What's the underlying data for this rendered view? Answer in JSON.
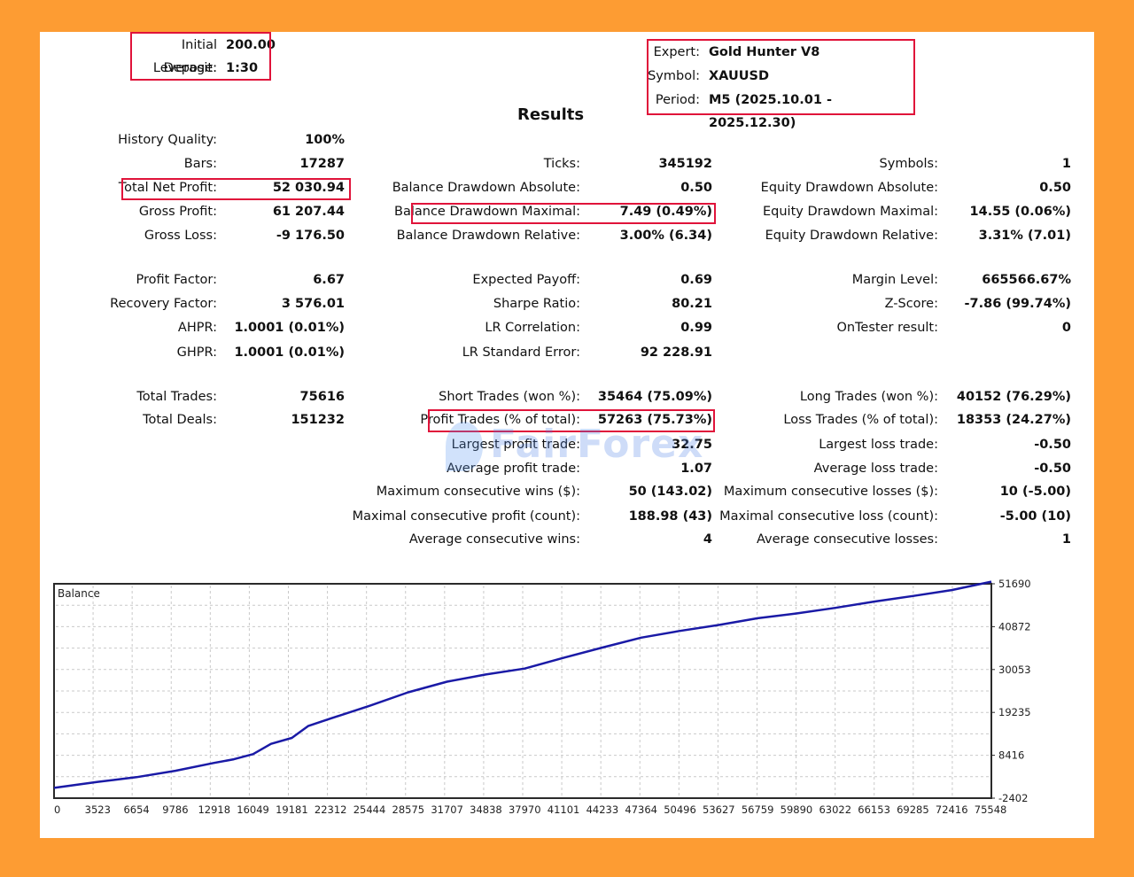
{
  "header_left": {
    "initial_deposit_label": "Initial Deposit:",
    "initial_deposit_value": "200.00",
    "leverage_label": "Leverage:",
    "leverage_value": "1:30"
  },
  "header_right": {
    "expert_label": "Expert:",
    "expert_value": "Gold Hunter V8",
    "symbol_label": "Symbol:",
    "symbol_value": "XAUUSD",
    "period_label": "Period:",
    "period_value": "M5 (2025.10.01 - 2025.12.30)"
  },
  "results_title": "Results",
  "col1": [
    {
      "label": "History Quality:",
      "value": "100%"
    },
    {
      "label": "Bars:",
      "value": "17287"
    },
    {
      "label": "Total Net Profit:",
      "value": "52 030.94"
    },
    {
      "label": "Gross Profit:",
      "value": "61 207.44"
    },
    {
      "label": "Gross Loss:",
      "value": "-9 176.50"
    },
    {
      "label": "Profit Factor:",
      "value": "6.67"
    },
    {
      "label": "Recovery Factor:",
      "value": "3 576.01"
    },
    {
      "label": "AHPR:",
      "value": "1.0001 (0.01%)"
    },
    {
      "label": "GHPR:",
      "value": "1.0001 (0.01%)"
    },
    {
      "label": "Total Trades:",
      "value": "75616"
    },
    {
      "label": "Total Deals:",
      "value": "151232"
    }
  ],
  "col2": [
    {
      "label": "Ticks:",
      "value": "345192"
    },
    {
      "label": "Balance Drawdown Absolute:",
      "value": "0.50"
    },
    {
      "label": "Balance Drawdown Maximal:",
      "value": "7.49 (0.49%)"
    },
    {
      "label": "Balance Drawdown Relative:",
      "value": "3.00% (6.34)"
    },
    {
      "label": "Expected Payoff:",
      "value": "0.69"
    },
    {
      "label": "Sharpe Ratio:",
      "value": "80.21"
    },
    {
      "label": "LR Correlation:",
      "value": "0.99"
    },
    {
      "label": "LR Standard Error:",
      "value": "92 228.91"
    },
    {
      "label": "Short Trades (won %):",
      "value": "35464 (75.09%)"
    },
    {
      "label": "Profit Trades (% of total):",
      "value": "57263 (75.73%)"
    },
    {
      "label": "Largest profit trade:",
      "value": "32.75"
    },
    {
      "label": "Average profit trade:",
      "value": "1.07"
    },
    {
      "label": "Maximum consecutive wins ($):",
      "value": "50 (143.02)"
    },
    {
      "label": "Maximal consecutive profit (count):",
      "value": "188.98 (43)"
    },
    {
      "label": "Average consecutive wins:",
      "value": "4"
    }
  ],
  "col3": [
    {
      "label": "Symbols:",
      "value": "1"
    },
    {
      "label": "Equity Drawdown Absolute:",
      "value": "0.50"
    },
    {
      "label": "Equity Drawdown Maximal:",
      "value": "14.55 (0.06%)"
    },
    {
      "label": "Equity Drawdown Relative:",
      "value": "3.31% (7.01)"
    },
    {
      "label": "Margin Level:",
      "value": "665566.67%"
    },
    {
      "label": "Z-Score:",
      "value": "-7.86 (99.74%)"
    },
    {
      "label": "OnTester result:",
      "value": "0"
    },
    {
      "label": "Long Trades (won %):",
      "value": "40152 (76.29%)"
    },
    {
      "label": "Loss Trades (% of total):",
      "value": "18353 (24.27%)"
    },
    {
      "label": "Largest loss trade:",
      "value": "-0.50"
    },
    {
      "label": "Average loss trade:",
      "value": "-0.50"
    },
    {
      "label": "Maximum consecutive losses ($):",
      "value": "10 (-5.00)"
    },
    {
      "label": "Maximal consecutive loss (count):",
      "value": "-5.00 (10)"
    },
    {
      "label": "Average consecutive losses:",
      "value": "1"
    }
  ],
  "watermark_text": "FairForex",
  "chart_data": {
    "type": "line",
    "title": "Balance",
    "x_ticks": [
      0,
      3523,
      6654,
      9786,
      12918,
      16049,
      19181,
      22312,
      25444,
      28575,
      31707,
      34838,
      37970,
      41101,
      44233,
      47364,
      50496,
      53627,
      56759,
      59890,
      63022,
      66153,
      69285,
      72416,
      75548
    ],
    "y_ticks": [
      -2402,
      8416,
      19235,
      30053,
      40872,
      51690
    ],
    "xlim": [
      0,
      75616
    ],
    "ylim": [
      -2402,
      51690
    ],
    "series": [
      {
        "color": "#1a1aa6",
        "x": [
          0,
          3523,
          6654,
          9786,
          12918,
          14500,
          16049,
          17500,
          19181,
          20500,
          22312,
          25444,
          28575,
          31707,
          34838,
          37970,
          41101,
          44233,
          47364,
          50496,
          53627,
          56759,
          59890,
          63022,
          66153,
          69285,
          72416,
          75616
        ],
        "y": [
          200,
          1700,
          2900,
          4500,
          6500,
          7400,
          8700,
          11300,
          12800,
          15800,
          17700,
          20900,
          24300,
          27000,
          28800,
          30300,
          33000,
          35600,
          38100,
          39800,
          41300,
          43000,
          44200,
          45600,
          47200,
          48600,
          50100,
          52230
        ]
      }
    ],
    "grid": true,
    "legend": "none"
  }
}
